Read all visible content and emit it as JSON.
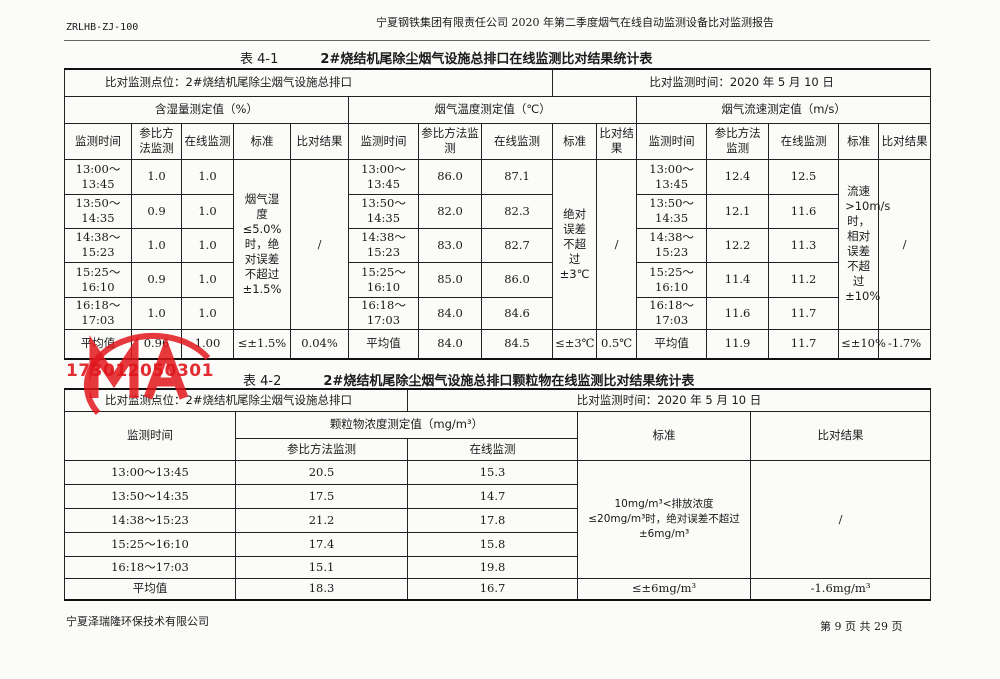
{
  "header": {
    "doc_code": "ZRLHB-ZJ-100",
    "title": "宁夏钢铁集团有限责任公司 2020 年第二季度烟气在线自动监测设备比对监测报告"
  },
  "table1": {
    "number": "表 4-1",
    "title": "2#烧结机尾除尘烟气设施总排口在线监测比对结果统计表",
    "location": "比对监测点位：2#烧结机尾除尘烟气设施总排口",
    "date": "比对监测时间：2020 年 5 月 10 日",
    "groups": [
      {
        "title": "含湿量测定值（%）",
        "columns": [
          "监测时间",
          "参比方法监测",
          "在线监测",
          "标准",
          "比对结果"
        ],
        "rows": [
          [
            "13:00～13:45",
            "1.0",
            "1.0"
          ],
          [
            "13:50～14:35",
            "0.9",
            "1.0"
          ],
          [
            "14:38～15:23",
            "1.0",
            "1.0"
          ],
          [
            "15:25～16:10",
            "0.9",
            "1.0"
          ],
          [
            "16:18～17:03",
            "1.0",
            "1.0"
          ]
        ],
        "standard": "烟气湿度≤5.0%时，绝对误差不超过±1.5%",
        "result": "/",
        "average": [
          "平均值",
          "0.96",
          "1.00",
          "≤±1.5%",
          "0.04%"
        ]
      },
      {
        "title": "烟气温度测定值（℃）",
        "columns": [
          "监测时间",
          "参比方法监测",
          "在线监测",
          "标准",
          "比对结果"
        ],
        "rows": [
          [
            "13:00～13:45",
            "86.0",
            "87.1"
          ],
          [
            "13:50～14:35",
            "82.0",
            "82.3"
          ],
          [
            "14:38～15:23",
            "83.0",
            "82.7"
          ],
          [
            "15:25～16:10",
            "85.0",
            "86.0"
          ],
          [
            "16:18～17:03",
            "84.0",
            "84.6"
          ]
        ],
        "standard": "绝对误差不超过±3℃",
        "result": "/",
        "average": [
          "平均值",
          "84.0",
          "84.5",
          "≤±3℃",
          "0.5℃"
        ]
      },
      {
        "title": "烟气流速测定值（m/s）",
        "columns": [
          "监测时间",
          "参比方法监测",
          "在线监测",
          "标准",
          "比对结果"
        ],
        "rows": [
          [
            "13:00～13:45",
            "12.4",
            "12.5"
          ],
          [
            "13:50～14:35",
            "12.1",
            "11.6"
          ],
          [
            "14:38～15:23",
            "12.2",
            "11.3"
          ],
          [
            "15:25～16:10",
            "11.4",
            "11.2"
          ],
          [
            "16:18～17:03",
            "11.6",
            "11.7"
          ]
        ],
        "standard": "流速>10m/s时，相对误差不超过±10%",
        "result": "/",
        "average": [
          "平均值",
          "11.9",
          "11.7",
          "≤±10%",
          "-1.7%"
        ]
      }
    ]
  },
  "table2": {
    "number": "表 4-2",
    "title": "2#烧结机尾除尘烟气设施总排口颗粒物在线监测比对结果统计表",
    "location": "比对监测点位：2#烧结机尾除尘烟气设施总排口",
    "date": "比对监测时间：2020 年 5 月 10 日",
    "col_time": "监测时间",
    "col_group": "颗粒物浓度测定值（mg/m³）",
    "col_ref": "参比方法监测",
    "col_online": "在线监测",
    "col_standard": "标准",
    "col_result": "比对结果",
    "rows": [
      [
        "13:00～13:45",
        "20.5",
        "15.3"
      ],
      [
        "13:50～14:35",
        "17.5",
        "14.7"
      ],
      [
        "14:38～15:23",
        "21.2",
        "17.8"
      ],
      [
        "15:25～16:10",
        "17.4",
        "15.8"
      ],
      [
        "16:18～17:03",
        "15.1",
        "19.8"
      ]
    ],
    "standard": "10mg/m³<排放浓度≤20mg/m³时，绝对误差不超过±6mg/m³",
    "result": "/",
    "average": [
      "平均值",
      "18.3",
      "16.7",
      "≤±6mg/m³",
      "-1.6mg/m³"
    ]
  },
  "stamp": {
    "text": "CMA",
    "code": "173012050301",
    "color": "#e0161c"
  },
  "footer": {
    "company": "宁夏泽瑞隆环保技术有限公司",
    "page": "第 9 页 共 29 页"
  }
}
